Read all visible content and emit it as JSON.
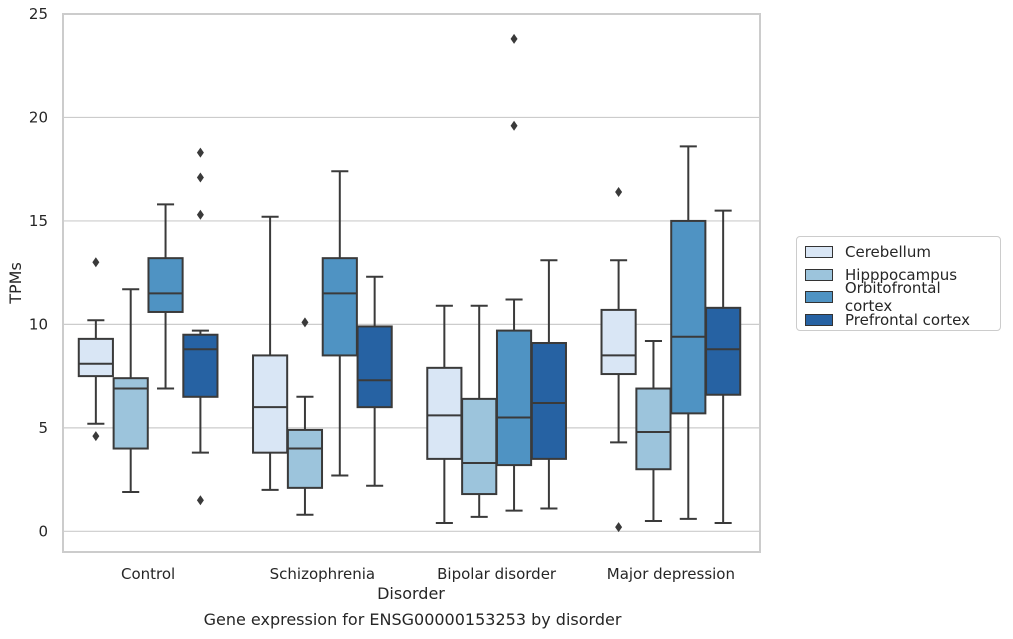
{
  "chart_data": {
    "type": "box",
    "xlabel": "Disorder",
    "ylabel": "TPMs",
    "caption": "Gene expression for ENSG00000153253 by disorder",
    "ylim": [
      -1,
      25
    ],
    "yticks": [
      "0",
      "5",
      "10",
      "15",
      "20",
      "25"
    ],
    "categories": [
      "Control",
      "Schizophrenia",
      "Bipolar disorder",
      "Major depression"
    ],
    "grid": "horizontal",
    "legend_position": "right",
    "series": [
      {
        "name": "Cerebellum",
        "color": "#d9e6f5",
        "boxes": [
          {
            "whislo": 5.2,
            "q1": 7.5,
            "med": 8.1,
            "q3": 9.3,
            "whishi": 10.2,
            "fliers": [
              13.0,
              4.6
            ]
          },
          {
            "whislo": 2.0,
            "q1": 3.8,
            "med": 6.0,
            "q3": 8.5,
            "whishi": 15.2,
            "fliers": []
          },
          {
            "whislo": 0.4,
            "q1": 3.5,
            "med": 5.6,
            "q3": 7.9,
            "whishi": 10.9,
            "fliers": []
          },
          {
            "whislo": 4.3,
            "q1": 7.6,
            "med": 8.5,
            "q3": 10.7,
            "whishi": 13.1,
            "fliers": [
              16.4,
              0.2
            ]
          }
        ]
      },
      {
        "name": "Hipppocampus",
        "color": "#9cc4dc",
        "boxes": [
          {
            "whislo": 1.9,
            "q1": 4.0,
            "med": 6.9,
            "q3": 7.4,
            "whishi": 11.7,
            "fliers": []
          },
          {
            "whislo": 0.8,
            "q1": 2.1,
            "med": 4.0,
            "q3": 4.9,
            "whishi": 6.5,
            "fliers": [
              10.1
            ]
          },
          {
            "whislo": 0.7,
            "q1": 1.8,
            "med": 3.3,
            "q3": 6.4,
            "whishi": 10.9,
            "fliers": []
          },
          {
            "whislo": 0.5,
            "q1": 3.0,
            "med": 4.8,
            "q3": 6.9,
            "whishi": 9.2,
            "fliers": []
          }
        ]
      },
      {
        "name": "Orbitofrontal cortex",
        "color": "#4f93c3",
        "boxes": [
          {
            "whislo": 6.9,
            "q1": 10.6,
            "med": 11.5,
            "q3": 13.2,
            "whishi": 15.8,
            "fliers": []
          },
          {
            "whislo": 2.7,
            "q1": 8.5,
            "med": 11.5,
            "q3": 13.2,
            "whishi": 17.4,
            "fliers": []
          },
          {
            "whislo": 1.0,
            "q1": 3.2,
            "med": 5.5,
            "q3": 9.7,
            "whishi": 11.2,
            "fliers": [
              19.6,
              23.8
            ]
          },
          {
            "whislo": 0.6,
            "q1": 5.7,
            "med": 9.4,
            "q3": 15.0,
            "whishi": 18.6,
            "fliers": []
          }
        ]
      },
      {
        "name": "Prefrontal cortex",
        "color": "#2662a3",
        "boxes": [
          {
            "whislo": 3.8,
            "q1": 6.5,
            "med": 8.8,
            "q3": 9.5,
            "whishi": 9.7,
            "fliers": [
              18.3,
              17.1,
              15.3,
              1.5
            ]
          },
          {
            "whislo": 2.2,
            "q1": 6.0,
            "med": 7.3,
            "q3": 9.9,
            "whishi": 12.3,
            "fliers": []
          },
          {
            "whislo": 1.1,
            "q1": 3.5,
            "med": 6.2,
            "q3": 9.1,
            "whishi": 13.1,
            "fliers": []
          },
          {
            "whislo": 0.4,
            "q1": 6.6,
            "med": 8.8,
            "q3": 10.8,
            "whishi": 15.5,
            "fliers": []
          }
        ]
      }
    ]
  }
}
